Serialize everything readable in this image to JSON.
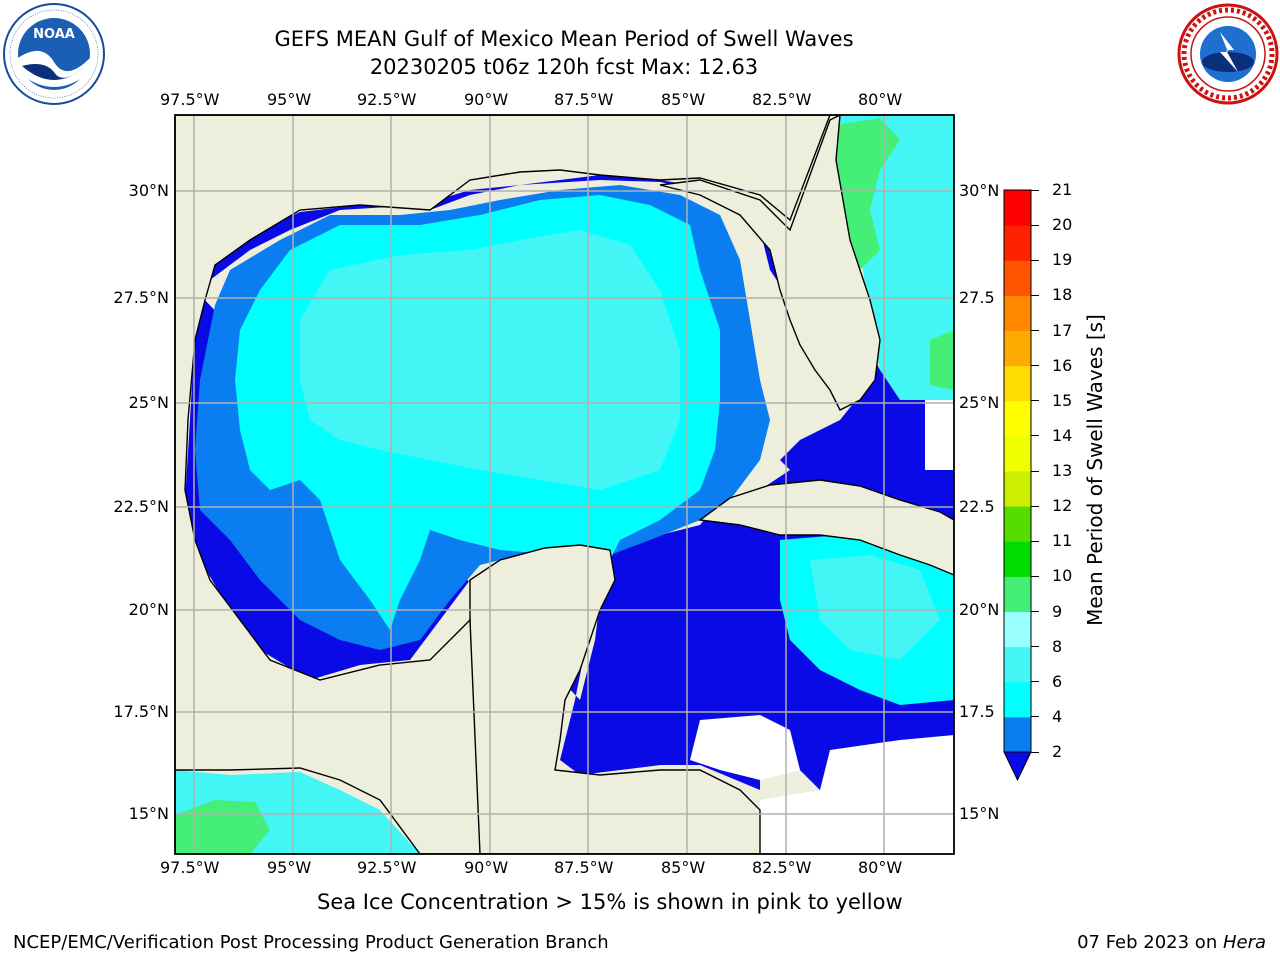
{
  "header": {
    "title_line1": "GEFS MEAN Gulf of Mexico Mean Period of Swell Waves",
    "title_line2": "20230205 t06z 120h fcst   Max: 12.63"
  },
  "logos": {
    "left": {
      "name": "NOAA",
      "ring_text": "NATIONAL OCEANIC AND ATMOSPHERIC ADMINISTRATION · U.S. DEPARTMENT OF COMMERCE"
    },
    "right": {
      "name": "NATIONAL WEATHER SERVICE"
    }
  },
  "map": {
    "lon_labels": [
      "97.5°W",
      "95°W",
      "92.5°W",
      "90°W",
      "87.5°W",
      "85°W",
      "82.5°W",
      "80°W"
    ],
    "lat_labels_left": [
      "30°N",
      "27.5°N",
      "25°N",
      "22.5°N",
      "20°N",
      "17.5°N",
      "15°N"
    ],
    "lat_labels_right": [
      "30°N",
      "27.5",
      "25°N",
      "22.5",
      "20°N",
      "17.5",
      "15°N"
    ],
    "land_color": "#eeeedd",
    "grid_color": "#b0b0b0"
  },
  "colorbar": {
    "label": "Mean Period of Swell Waves [s]",
    "ticks": [
      "2",
      "4",
      "6",
      "8",
      "9",
      "10",
      "11",
      "12",
      "13",
      "14",
      "15",
      "16",
      "17",
      "18",
      "19",
      "20",
      "21"
    ],
    "colors": [
      "#0a0ae6",
      "#0a7ef0",
      "#00ffff",
      "#44f5f5",
      "#99ffff",
      "#44ee77",
      "#00dd00",
      "#55dd00",
      "#ccee00",
      "#eeff00",
      "#ffff00",
      "#ffdd00",
      "#ffaa00",
      "#ff8800",
      "#ff5500",
      "#ff2200",
      "#ff0000"
    ]
  },
  "legend_note": "Sea Ice Concentration > 15% is shown in pink to yellow",
  "footer": {
    "left": "NCEP/EMC/Verification Post Processing Product Generation Branch",
    "right_prefix": "07 Feb 2023 on ",
    "right_italic": "Hera"
  }
}
